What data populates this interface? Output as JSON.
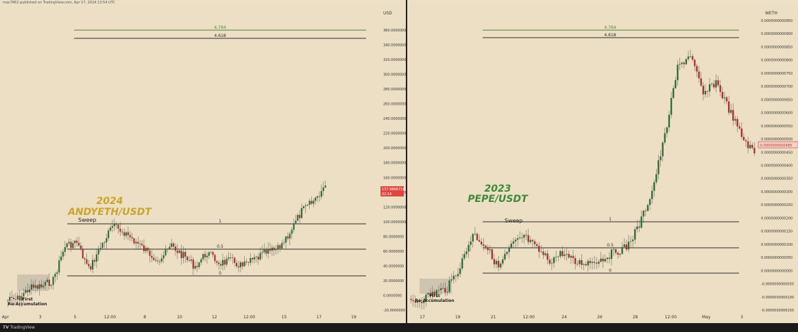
{
  "header": {
    "publisher_line": "mac7862 published on TradingView.com, Apr 17, 2024 13:54 UTC"
  },
  "footer": {
    "brand": "TradingView"
  },
  "colors": {
    "up": "#2f6b3a",
    "down": "#a8322c",
    "wick": "#6a6a6a",
    "level_line": "#2b2b2b",
    "fib_green": "#4f7d3e",
    "label_2024": "#c9a62a",
    "label_2023": "#3e8a3b",
    "price_badge": "#e0463f"
  },
  "chart_data": [
    {
      "type": "candlestick",
      "title_year": "2024",
      "title_pair": "ANDYETH/USDT",
      "currency_label": "USD",
      "price_badge": "137.9866718",
      "price_badge_sub": "02:16",
      "yticks": [
        "360.0000000",
        "340.0000000",
        "320.0000000",
        "300.0000000",
        "280.0000000",
        "260.0000000",
        "240.0000000",
        "220.0000000",
        "200.0000000",
        "180.0000000",
        "160.0000000",
        "140.0000000",
        "120.0000000",
        "100.0000000",
        "80.0000000",
        "60.0000000",
        "40.0000000",
        "20.0000000",
        "0.0000000",
        "-20.0000000"
      ],
      "xticks": [
        "Apr",
        "3",
        "5",
        "12:00",
        "8",
        "10",
        "12",
        "12:00",
        "15",
        "17",
        "19"
      ],
      "ylim": [
        -25,
        365
      ],
      "levels": [
        {
          "label": "4.764",
          "value": 345,
          "color": "green"
        },
        {
          "label": "4.618",
          "value": 336,
          "color": "dark"
        },
        {
          "label": "1",
          "value": 92,
          "color": "dark"
        },
        {
          "label": "0.5",
          "value": 58,
          "color": "dark"
        },
        {
          "label": "0",
          "value": 24,
          "color": "dark"
        }
      ],
      "annotations": [
        {
          "text": "Sweep",
          "near_level": "1"
        },
        {
          "text": "First",
          "subtext": "Re-Accumulation"
        }
      ],
      "candles_approx": "synthetic path: start ~0, accumulate ~15, rally to ~95, range 30-100, breakout to ~155"
    },
    {
      "type": "candlestick",
      "title_year": "2023",
      "title_pair": "PEPE/USDT",
      "currency_label": "WETH",
      "price_badge": "0.0000000000488",
      "yticks": [
        "0.0000000000950",
        "0.0000000000900",
        "0.0000000000850",
        "0.0000000000800",
        "0.0000000000750",
        "0.0000000000700",
        "0.0000000000650",
        "0.0000000000600",
        "0.0000000000550",
        "0.0000000000500",
        "0.0000000000450",
        "0.0000000000400",
        "0.0000000000350",
        "0.0000000000300",
        "0.0000000000250",
        "0.0000000000200",
        "0.0000000000150",
        "0.0000000000100",
        "0.0000000000050",
        "0.0000000000000",
        "-0.0000000000050",
        "-0.0000000000100",
        "-0.0000000000150"
      ],
      "xticks": [
        "17",
        "19",
        "21",
        "12:00",
        "24",
        "26",
        "28",
        "12:00",
        "May",
        "3"
      ],
      "levels": [
        {
          "label": "4.764",
          "color": "green"
        },
        {
          "label": "4.618",
          "color": "dark"
        },
        {
          "label": "1",
          "color": "dark"
        },
        {
          "label": "0.5",
          "color": "dark"
        },
        {
          "label": "0",
          "color": "dark"
        }
      ],
      "annotations": [
        {
          "text": "Sweep",
          "near_level": "1"
        },
        {
          "text": "First",
          "subtext": "Re-Accumulation"
        }
      ]
    }
  ]
}
